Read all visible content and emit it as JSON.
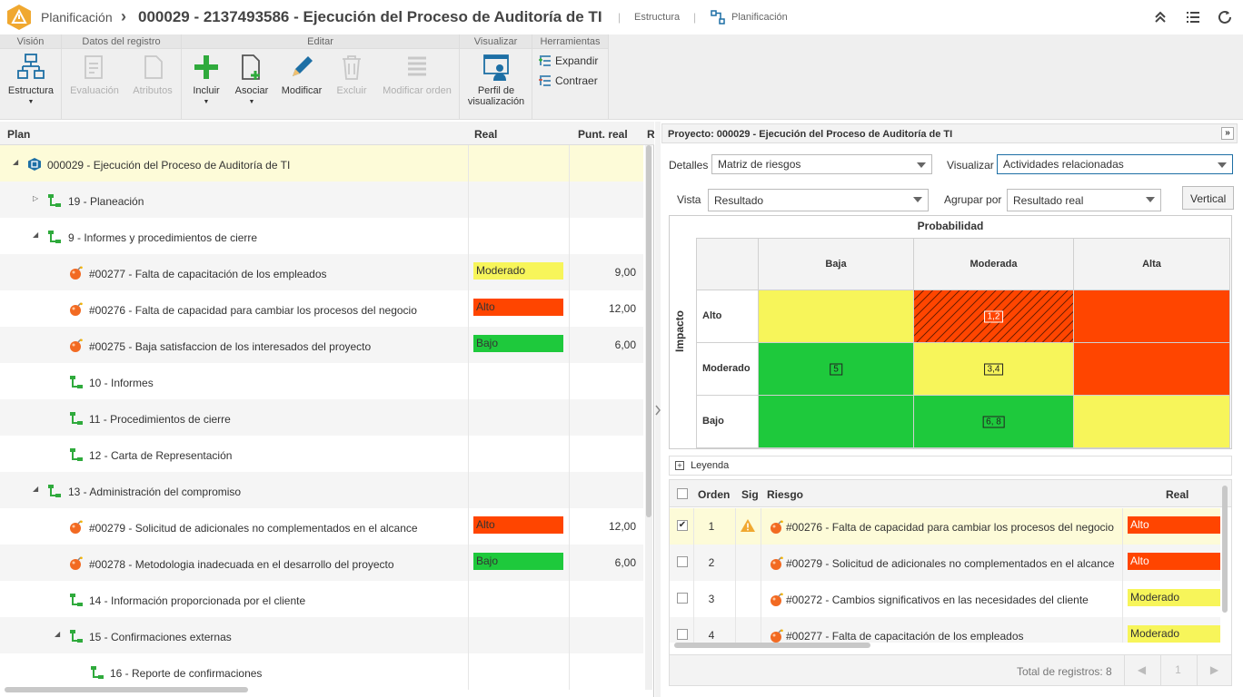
{
  "header": {
    "app_name": "Planificación",
    "record_title": "000029 - 2137493586 - Ejecución del Proceso de Auditoría de TI",
    "link_structure": "Estructura",
    "link_planning": "Planificación"
  },
  "ribbon": {
    "groups": [
      "Visión",
      "Datos del registro",
      "Editar",
      "Visualizar",
      "Herramientas"
    ],
    "structure": "Estructura",
    "evaluation": "Evaluación",
    "attributes": "Atributos",
    "include": "Incluir",
    "associate": "Asociar",
    "modify": "Modificar",
    "delete": "Excluir",
    "modify_order": "Modificar orden",
    "profile_line1": "Perfil de",
    "profile_line2": "visualización",
    "expand": "Expandir",
    "collapse": "Contraer"
  },
  "colors": {
    "moderado": "#f7f55a",
    "alto": "#ff4500",
    "bajo": "#1ec93c",
    "accent": "#1d6fa5"
  },
  "plan_grid": {
    "headers": {
      "plan": "Plan",
      "real": "Real",
      "punt": "Punt. real",
      "r": "R"
    },
    "rows": [
      {
        "text": "000029 - Ejecución del Proceso de Auditoría de TI",
        "toggle": "◢",
        "icon": "project-icon"
      },
      {
        "text": "19 - Planeación",
        "toggle": "▷",
        "icon": "wbs-icon"
      },
      {
        "text": "9 - Informes y procedimientos de cierre",
        "toggle": "◢",
        "icon": "wbs-icon"
      },
      {
        "text": "#00277 - Falta de capacitación de los empleados",
        "icon": "risk-icon",
        "real": "Moderado",
        "punt": "9,00"
      },
      {
        "text": "#00276 - Falta de capacidad para cambiar los procesos del negocio",
        "icon": "risk-icon",
        "real": "Alto",
        "punt": "12,00"
      },
      {
        "text": "#00275 - Baja satisfaccion de los interesados del proyecto",
        "icon": "risk-icon",
        "real": "Bajo",
        "punt": "6,00"
      },
      {
        "text": "10 - Informes",
        "icon": "wbs-icon"
      },
      {
        "text": "11 - Procedimientos de cierre",
        "icon": "wbs-icon"
      },
      {
        "text": "12 - Carta de Representación",
        "icon": "wbs-icon"
      },
      {
        "text": "13 - Administración del compromiso",
        "toggle": "◢",
        "icon": "wbs-icon"
      },
      {
        "text": "#00279 - Solicitud de adicionales no complementados en el alcance",
        "icon": "risk-icon",
        "real": "Alto",
        "punt": "12,00"
      },
      {
        "text": "#00278 - Metodologia inadecuada en el desarrollo del proyecto",
        "icon": "risk-icon",
        "real": "Bajo",
        "punt": "6,00"
      },
      {
        "text": "14 - Información proporcionada por el cliente",
        "icon": "wbs-icon"
      },
      {
        "text": "15 - Confirmaciones externas",
        "toggle": "◢",
        "icon": "wbs-icon"
      },
      {
        "text": "16 - Reporte de confirmaciones",
        "icon": "wbs-icon"
      }
    ]
  },
  "right_panel": {
    "title": "Proyecto: 000029 - Ejecución del Proceso de Auditoría de TI",
    "details_label": "Detalles",
    "details_value": "Matriz de riesgos",
    "visualize_label": "Visualizar",
    "visualize_value": "Actividades relacionadas",
    "view_label": "Vista",
    "view_value": "Resultado",
    "group_label": "Agrupar por",
    "group_value": "Resultado real",
    "vertical_button": "Vertical",
    "legend": "Leyenda"
  },
  "matrix": {
    "probability": "Probabilidad",
    "impact": "Impacto",
    "columns": [
      "Baja",
      "Moderada",
      "Alta"
    ],
    "rows": [
      {
        "label": "Alto",
        "cells": [
          {
            "color": "#f7f55a",
            "tag": ""
          },
          {
            "color": "#ff4500",
            "tag": "1,2"
          },
          {
            "color": "#ff4500",
            "tag": ""
          }
        ]
      },
      {
        "label": "Moderado",
        "cells": [
          {
            "color": "#1ec93c",
            "tag": "5"
          },
          {
            "color": "#f7f55a",
            "tag": "3,4"
          },
          {
            "color": "#ff4500",
            "tag": ""
          }
        ]
      },
      {
        "label": "Bajo",
        "cells": [
          {
            "color": "#1ec93c",
            "tag": ""
          },
          {
            "color": "#1ec93c",
            "tag": "6, 8"
          },
          {
            "color": "#f7f55a",
            "tag": ""
          }
        ]
      }
    ]
  },
  "risk_grid": {
    "headers": {
      "order": "Orden",
      "sig": "Sig",
      "risk": "Riesgo",
      "real": "Real"
    },
    "rows": [
      {
        "order": "1",
        "checked": "✔",
        "warn": true,
        "risk": "#00276 - Falta de capacidad para cambiar los procesos del negocio",
        "real": "Alto"
      },
      {
        "order": "2",
        "checked": "",
        "warn": false,
        "risk": "#00279 - Solicitud de adicionales no complementados en el alcance",
        "real": "Alto"
      },
      {
        "order": "3",
        "checked": "",
        "warn": false,
        "risk": "#00272 - Cambios significativos en las necesidades del cliente",
        "real": "Moderado"
      },
      {
        "order": "4",
        "checked": "",
        "warn": false,
        "risk": "#00277 - Falta de capacitación de los empleados",
        "real": "Moderado"
      }
    ],
    "total": "Total de registros: 8",
    "page": "1"
  }
}
